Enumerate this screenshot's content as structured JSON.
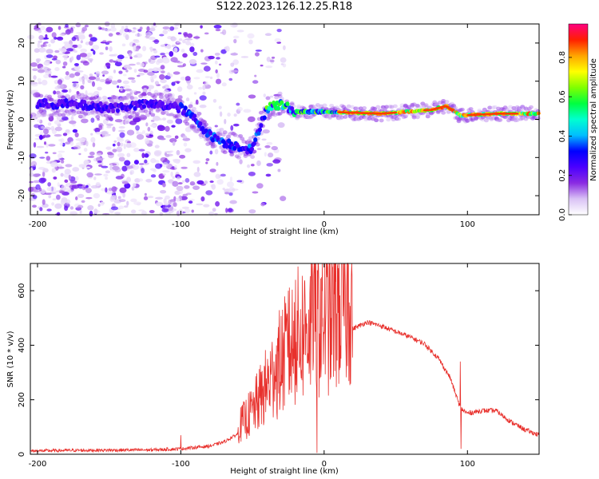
{
  "title": "S122.2023.126.12.25.R18",
  "chart_data": [
    {
      "type": "heatmap",
      "xlabel": "Height of straight line (km)",
      "ylabel": "Frequency (Hz)",
      "xlim": [
        -205,
        150
      ],
      "ylim": [
        -25,
        25
      ],
      "xticks": [
        -200,
        -100,
        0,
        100
      ],
      "yticks": [
        -20,
        -10,
        0,
        10,
        20
      ],
      "grid": false,
      "colorbar": {
        "label": "Normalized spectral amplitude",
        "range": [
          0.0,
          0.97
        ],
        "ticks": [
          0.0,
          0.2,
          0.4,
          0.6,
          0.8
        ],
        "tick_labels": [
          "0.0",
          "0.2",
          "0.4",
          "0.6",
          "0.8"
        ],
        "colormap": [
          "#ffffff",
          "#d9c2f5",
          "#8a2be2",
          "#4b00ff",
          "#0000ff",
          "#00bfff",
          "#00ffd0",
          "#00ff40",
          "#80ff00",
          "#ffff00",
          "#ffa500",
          "#ff2000",
          "#ff0080"
        ]
      },
      "ridge": [
        {
          "x": -180,
          "y": 4
        },
        {
          "x": -150,
          "y": 3
        },
        {
          "x": -120,
          "y": 4
        },
        {
          "x": -100,
          "y": 3
        },
        {
          "x": -90,
          "y": 0
        },
        {
          "x": -80,
          "y": -4
        },
        {
          "x": -70,
          "y": -6
        },
        {
          "x": -60,
          "y": -7
        },
        {
          "x": -50,
          "y": -8
        },
        {
          "x": -45,
          "y": -2
        },
        {
          "x": -40,
          "y": 3
        },
        {
          "x": -30,
          "y": 4
        },
        {
          "x": -20,
          "y": 2
        },
        {
          "x": 0,
          "y": 2
        },
        {
          "x": 40,
          "y": 1.5
        },
        {
          "x": 75,
          "y": 2.5
        },
        {
          "x": 85,
          "y": 3.5
        },
        {
          "x": 95,
          "y": 1
        },
        {
          "x": 120,
          "y": 1.5
        },
        {
          "x": 150,
          "y": 1.5
        }
      ]
    },
    {
      "type": "line",
      "xlabel": "Height of straight line (km)",
      "ylabel": "SNR (10 * v/v)",
      "xlim": [
        -205,
        150
      ],
      "ylim": [
        0,
        700
      ],
      "xticks": [
        -200,
        -100,
        0,
        100
      ],
      "yticks": [
        0,
        200,
        400,
        600
      ],
      "grid": false,
      "series": [
        {
          "color": "#e8302c",
          "envelope": [
            {
              "x": -205,
              "y": 12
            },
            {
              "x": -180,
              "y": 14
            },
            {
              "x": -150,
              "y": 15
            },
            {
              "x": -120,
              "y": 16
            },
            {
              "x": -100,
              "y": 20
            },
            {
              "x": -80,
              "y": 30
            },
            {
              "x": -70,
              "y": 45
            },
            {
              "x": -60,
              "y": 75
            },
            {
              "x": -50,
              "y": 120
            },
            {
              "x": -40,
              "y": 190
            },
            {
              "x": -30,
              "y": 260
            },
            {
              "x": -20,
              "y": 320
            },
            {
              "x": -10,
              "y": 360
            },
            {
              "x": 0,
              "y": 390
            },
            {
              "x": 10,
              "y": 420
            },
            {
              "x": 20,
              "y": 460
            },
            {
              "x": 30,
              "y": 485
            },
            {
              "x": 40,
              "y": 470
            },
            {
              "x": 50,
              "y": 450
            },
            {
              "x": 60,
              "y": 430
            },
            {
              "x": 70,
              "y": 405
            },
            {
              "x": 80,
              "y": 350
            },
            {
              "x": 88,
              "y": 280
            },
            {
              "x": 95,
              "y": 170
            },
            {
              "x": 100,
              "y": 150
            },
            {
              "x": 110,
              "y": 160
            },
            {
              "x": 120,
              "y": 160
            },
            {
              "x": 130,
              "y": 120
            },
            {
              "x": 140,
              "y": 90
            },
            {
              "x": 150,
              "y": 70
            }
          ],
          "spikes": [
            {
              "x": -100,
              "y": 70
            },
            {
              "x": -35,
              "y": 340
            },
            {
              "x": -25,
              "y": 600
            },
            {
              "x": -20,
              "y": 640
            },
            {
              "x": -12,
              "y": 480
            },
            {
              "x": -7,
              "y": 700
            },
            {
              "x": -5,
              "y": 5
            },
            {
              "x": 5,
              "y": 500
            },
            {
              "x": 15,
              "y": 430
            },
            {
              "x": 95,
              "y": 340
            },
            {
              "x": 95.5,
              "y": 20
            }
          ]
        }
      ]
    }
  ]
}
